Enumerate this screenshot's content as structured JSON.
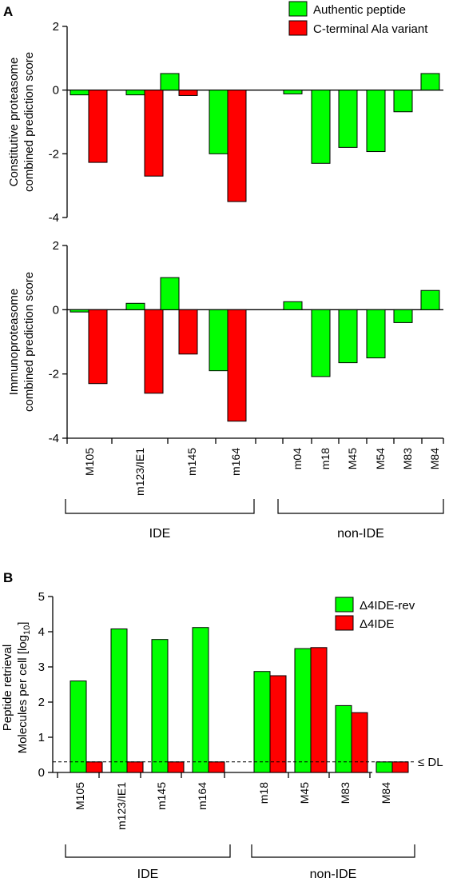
{
  "colors": {
    "green": "#00ff00",
    "red": "#ff0000",
    "stroke": "#000000"
  },
  "panel_a": {
    "letter": "A",
    "legend": [
      "Authentic peptide",
      "C-terminal Ala variant"
    ],
    "categories": [
      "M105",
      "m123/IE1",
      "m145",
      "m164",
      "m04",
      "m18",
      "M45",
      "M54",
      "M83",
      "M84"
    ],
    "groups": [
      {
        "label": "IDE"
      },
      {
        "label": "non-IDE"
      }
    ]
  },
  "panel_b": {
    "letter": "B",
    "legend": [
      "Δ4IDE-rev",
      "Δ4IDE"
    ],
    "categories": [
      "M105",
      "m123/IE1",
      "m145",
      "m164",
      "m18",
      "M45",
      "M83",
      "M84"
    ],
    "groups": [
      {
        "label": "IDE"
      },
      {
        "label": "non-IDE"
      }
    ],
    "dl_label": "≤ DL",
    "dl_value": 0.3
  },
  "chart_data": [
    {
      "type": "bar",
      "ylabel": [
        "Constitutive proteasome",
        "combined prediction score"
      ],
      "ylim": [
        -4,
        2
      ],
      "yticks": [
        "2",
        "0",
        "-2",
        "-4"
      ],
      "categories": [
        "M105",
        "m123/IE1",
        "m145",
        "m164",
        "m04",
        "m18",
        "M45",
        "M54",
        "M83",
        "M84"
      ],
      "series": [
        {
          "name": "Authentic peptide",
          "values": [
            -0.15,
            -0.15,
            0.52,
            -2.0,
            -0.12,
            -2.3,
            -1.8,
            -1.93,
            -0.68,
            0.52
          ]
        },
        {
          "name": "C-terminal Ala variant",
          "values": [
            -2.27,
            -2.7,
            -0.17,
            -3.5,
            null,
            null,
            null,
            null,
            null,
            null
          ]
        }
      ]
    },
    {
      "type": "bar",
      "ylabel": [
        "Immunoproteasome",
        "combined prediction score"
      ],
      "ylim": [
        -4,
        2
      ],
      "yticks": [
        "2",
        "0",
        "-2",
        "-4"
      ],
      "categories": [
        "M105",
        "m123/IE1",
        "m145",
        "m164",
        "m04",
        "m18",
        "M45",
        "M54",
        "M83",
        "M84"
      ],
      "series": [
        {
          "name": "Authentic peptide",
          "values": [
            -0.07,
            0.2,
            1.0,
            -1.9,
            0.25,
            -2.08,
            -1.65,
            -1.5,
            -0.4,
            0.6
          ]
        },
        {
          "name": "C-terminal Ala variant",
          "values": [
            -2.3,
            -2.6,
            -1.38,
            -3.47,
            null,
            null,
            null,
            null,
            null,
            null
          ]
        }
      ]
    },
    {
      "type": "bar",
      "ylabel": [
        "Peptide retrieval",
        "Molecules per cell [log",
        "10",
        "]"
      ],
      "ylim": [
        0,
        5
      ],
      "yticks": [
        "5",
        "4",
        "3",
        "2",
        "1",
        "0"
      ],
      "categories": [
        "M105",
        "m123/IE1",
        "m145",
        "m164",
        "m18",
        "M45",
        "M83",
        "M84"
      ],
      "series": [
        {
          "name": "Δ4IDE-rev",
          "values": [
            2.6,
            4.08,
            3.78,
            4.12,
            2.87,
            3.52,
            1.9,
            0.3
          ]
        },
        {
          "name": "Δ4IDE",
          "values": [
            0.3,
            0.3,
            0.3,
            0.3,
            2.75,
            3.55,
            1.7,
            0.3
          ]
        }
      ]
    }
  ]
}
